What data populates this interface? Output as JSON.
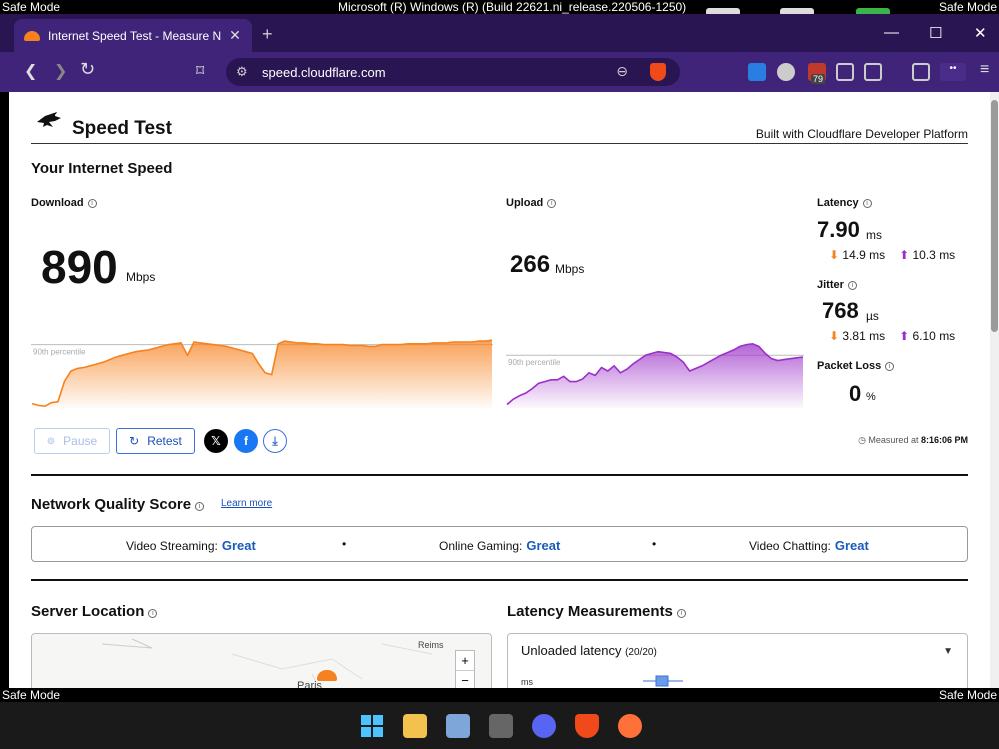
{
  "os": {
    "safe_mode": "Safe Mode",
    "window_title": "Microsoft (R) Windows (R) (Build 22621.ni_release.220506-1250)"
  },
  "browser": {
    "tab_title": "Internet Speed Test - Measure N",
    "tab_close": "✕",
    "new_tab": "+",
    "url": "speed.cloudflare.com",
    "extension_badge": "79",
    "window_controls": {
      "minimize": "—",
      "maximize": "☐",
      "close": "✕"
    }
  },
  "header": {
    "title": "Speed Test",
    "built_with": "Built with Cloudflare Developer Platform"
  },
  "speed": {
    "section_title": "Your Internet Speed",
    "download": {
      "label": "Download",
      "value": "890",
      "unit": "Mbps",
      "percentile_label": "90th percentile",
      "chart_data": {
        "type": "area",
        "color": "#f6821f",
        "values": [
          5,
          3,
          2,
          6,
          7,
          30,
          42,
          45,
          46,
          48,
          50,
          52,
          55,
          58,
          60,
          62,
          64,
          65,
          66,
          68,
          70,
          72,
          73,
          74,
          60,
          75,
          74,
          73,
          72,
          71,
          70,
          68,
          66,
          64,
          62,
          50,
          40,
          38,
          73,
          76,
          75,
          74,
          74,
          73,
          73,
          72,
          72,
          72,
          72,
          71,
          71,
          71,
          70,
          70,
          72,
          72,
          72,
          72,
          73,
          73,
          73,
          73,
          74,
          74,
          74,
          75,
          75,
          75,
          75,
          76,
          76,
          77
        ],
        "percentile_value": 72
      }
    },
    "upload": {
      "label": "Upload",
      "value": "266",
      "unit": "Mbps",
      "percentile_label": "90th percentile",
      "chart_data": {
        "type": "area",
        "color": "#9b30c8",
        "values": [
          4,
          10,
          14,
          17,
          22,
          28,
          30,
          32,
          32,
          36,
          30,
          30,
          33,
          40,
          37,
          46,
          42,
          48,
          40,
          44,
          50,
          55,
          60,
          62,
          64,
          63,
          62,
          58,
          52,
          42,
          45,
          48,
          52,
          56,
          60,
          63,
          66,
          70,
          72,
          73,
          70,
          62,
          56,
          54,
          55,
          56,
          57,
          58
        ],
        "percentile_value": 60
      }
    },
    "latency": {
      "label": "Latency",
      "value": "7.90",
      "unit": "ms",
      "down": "14.9 ms",
      "up": "10.3 ms"
    },
    "jitter": {
      "label": "Jitter",
      "value": "768",
      "unit": "µs",
      "down": "3.81 ms",
      "up": "6.10 ms"
    },
    "packet_loss": {
      "label": "Packet Loss",
      "value": "0",
      "unit": "%"
    },
    "pause_label": "Pause",
    "retest_label": "Retest",
    "measured_prefix": "Measured at",
    "measured_time": "8:16:06 PM"
  },
  "nqs": {
    "title": "Network Quality Score",
    "learn_more": "Learn more",
    "items": [
      {
        "label": "Video Streaming:",
        "value": "Great"
      },
      {
        "label": "Online Gaming:",
        "value": "Great"
      },
      {
        "label": "Video Chatting:",
        "value": "Great"
      }
    ]
  },
  "server": {
    "title": "Server Location",
    "cities": {
      "reims": "Reims",
      "paris": "Paris"
    }
  },
  "latency_measurements": {
    "title": "Latency Measurements",
    "dropdown_label": "Unloaded latency",
    "dropdown_count": "(20/20)",
    "axis_unit": "ms"
  }
}
